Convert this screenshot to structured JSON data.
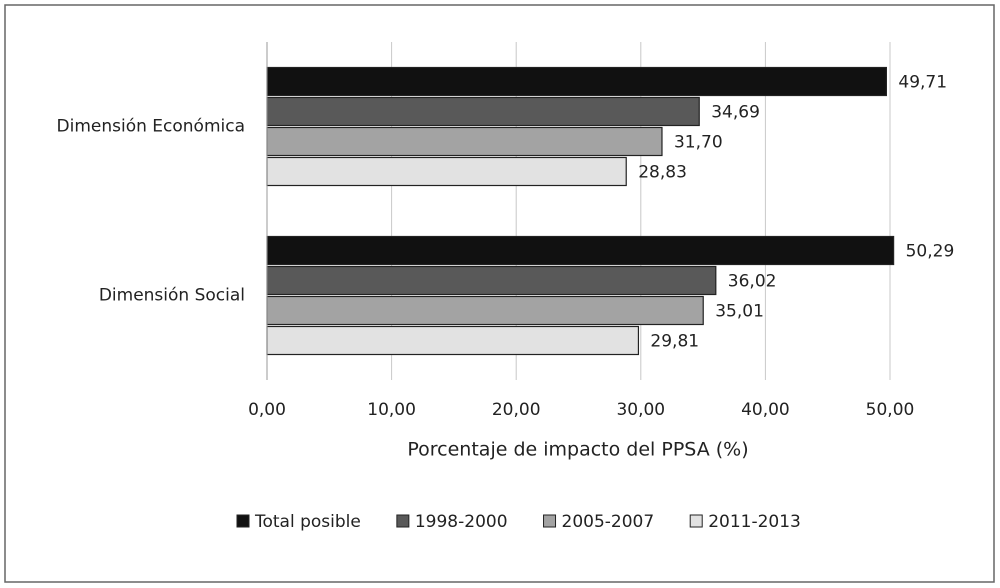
{
  "chart_data": {
    "type": "bar",
    "orientation": "horizontal",
    "categories": [
      "Dimensión Económica",
      "Dimensión Social"
    ],
    "series": [
      {
        "name": "Total posible",
        "color": "#111111",
        "values": [
          49.71,
          50.29
        ],
        "value_labels": [
          "49,71",
          "50,29"
        ]
      },
      {
        "name": "1998-2000",
        "color": "#595959",
        "values": [
          34.69,
          36.02
        ],
        "value_labels": [
          "34,69",
          "36,02"
        ]
      },
      {
        "name": "2005-2007",
        "color": "#a3a3a3",
        "values": [
          31.7,
          35.01
        ],
        "value_labels": [
          "31,70",
          "35,01"
        ]
      },
      {
        "name": "2011-2013",
        "color": "#e2e2e2",
        "values": [
          28.83,
          29.81
        ],
        "value_labels": [
          "28,83",
          "29,81"
        ]
      }
    ],
    "xlabel": "Porcentaje de impacto del PPSA (%)",
    "xlim": [
      0,
      50
    ],
    "xticks": [
      {
        "value": 0,
        "label": "0,00"
      },
      {
        "value": 10,
        "label": "10,00"
      },
      {
        "value": 20,
        "label": "20,00"
      },
      {
        "value": 30,
        "label": "30,00"
      },
      {
        "value": 40,
        "label": "40,00"
      },
      {
        "value": 50,
        "label": "50,00"
      }
    ],
    "grid": true,
    "legend": "bottom"
  }
}
